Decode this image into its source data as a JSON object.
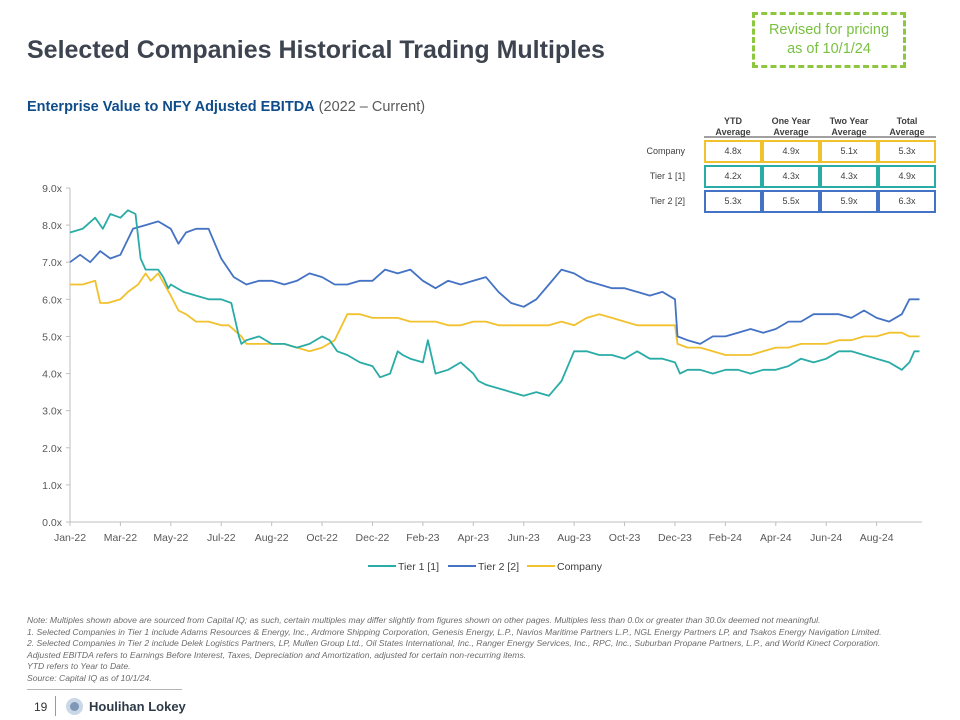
{
  "header": {
    "title": "Selected Companies Historical Trading Multiples",
    "revised_line1": "Revised for pricing",
    "revised_line2": "as of 10/1/24"
  },
  "subtitle": {
    "bold": "Enterprise Value to NFY Adjusted EBITDA",
    "range": "(2022 – Current)"
  },
  "summary_table": {
    "columns": [
      [
        "YTD",
        "Average"
      ],
      [
        "One Year",
        "Average"
      ],
      [
        "Two Year",
        "Average"
      ],
      [
        "Total",
        "Average"
      ]
    ],
    "rows": [
      {
        "label": "Company",
        "values": [
          "4.8x",
          "4.9x",
          "5.1x",
          "5.3x"
        ],
        "border": "#f2c12e"
      },
      {
        "label": "Tier 1 [1]",
        "values": [
          "4.2x",
          "4.3x",
          "4.3x",
          "4.9x"
        ],
        "border": "#2aaca6"
      },
      {
        "label": "Tier 2 [2]",
        "values": [
          "5.3x",
          "5.5x",
          "5.9x",
          "6.3x"
        ],
        "border": "#4472c4"
      }
    ]
  },
  "chart_data": {
    "type": "line",
    "title": "Enterprise Value to NFY Adjusted EBITDA (2022 – Current)",
    "x_unit": "months since Jan-22",
    "x_ticks": [
      "Jan-22",
      "Mar-22",
      "May-22",
      "Jul-22",
      "Aug-22",
      "Oct-22",
      "Dec-22",
      "Feb-23",
      "Apr-23",
      "Jun-23",
      "Aug-23",
      "Oct-23",
      "Dec-23",
      "Feb-24",
      "Apr-24",
      "Jun-24",
      "Aug-24"
    ],
    "x_tick_values": [
      0,
      2,
      4,
      6,
      8,
      10,
      12,
      14,
      16,
      18,
      20,
      22,
      24,
      26,
      28,
      30,
      32
    ],
    "xlim": [
      0,
      33.8
    ],
    "y_ticks": [
      "0.0x",
      "1.0x",
      "2.0x",
      "3.0x",
      "4.0x",
      "5.0x",
      "6.0x",
      "7.0x",
      "8.0x",
      "9.0x"
    ],
    "ylim": [
      0,
      9
    ],
    "legend_position": "bottom",
    "series": [
      {
        "name": "Tier 1 [1]",
        "color": "#2aaca6",
        "x": [
          0,
          0.5,
          1,
          1.3,
          1.6,
          2,
          2.3,
          2.6,
          2.8,
          3,
          3.5,
          3.7,
          3.9,
          4,
          4.5,
          5,
          5.5,
          6,
          6.4,
          6.7,
          6.8,
          7,
          7.5,
          8,
          8.5,
          9,
          9.5,
          10,
          10.3,
          10.6,
          11,
          11.5,
          12,
          12.3,
          12.7,
          13,
          13.2,
          13.5,
          14,
          14.2,
          14.5,
          15,
          15.5,
          16,
          16.2,
          16.5,
          17,
          17.5,
          18,
          18.5,
          19,
          19.5,
          20,
          20.5,
          21,
          21.5,
          22,
          22.5,
          23,
          23.5,
          24,
          24.2,
          24.5,
          25,
          25.5,
          26,
          26.5,
          27,
          27.5,
          28,
          28.5,
          29,
          29.5,
          30,
          30.5,
          31,
          31.5,
          32,
          32.5,
          33,
          33.3,
          33.5,
          33.7
        ],
        "y": [
          7.8,
          7.9,
          8.2,
          7.9,
          8.3,
          8.2,
          8.4,
          8.3,
          7.1,
          6.8,
          6.8,
          6.6,
          6.3,
          6.4,
          6.2,
          6.1,
          6.0,
          6.0,
          5.9,
          5.0,
          4.8,
          4.9,
          5.0,
          4.8,
          4.8,
          4.7,
          4.8,
          5.0,
          4.9,
          4.6,
          4.5,
          4.3,
          4.2,
          3.9,
          4.0,
          4.6,
          4.5,
          4.4,
          4.3,
          4.9,
          4.0,
          4.1,
          4.3,
          4.0,
          3.8,
          3.7,
          3.6,
          3.5,
          3.4,
          3.5,
          3.4,
          3.8,
          4.6,
          4.6,
          4.5,
          4.5,
          4.4,
          4.6,
          4.4,
          4.4,
          4.3,
          4.0,
          4.1,
          4.1,
          4.0,
          4.1,
          4.1,
          4.0,
          4.1,
          4.1,
          4.2,
          4.4,
          4.3,
          4.4,
          4.6,
          4.6,
          4.5,
          4.4,
          4.3,
          4.1,
          4.3,
          4.6,
          4.6
        ]
      },
      {
        "name": "Tier 2 [2]",
        "color": "#4472c4",
        "x": [
          0,
          0.4,
          0.8,
          1.2,
          1.6,
          2,
          2.5,
          3,
          3.5,
          4,
          4.3,
          4.6,
          5,
          5.5,
          6,
          6.5,
          7,
          7.5,
          8,
          8.5,
          9,
          9.5,
          10,
          10.5,
          11,
          11.5,
          12,
          12.5,
          13,
          13.5,
          14,
          14.5,
          15,
          15.5,
          16,
          16.5,
          17,
          17.5,
          18,
          18.5,
          19,
          19.5,
          20,
          20.5,
          21,
          21.5,
          22,
          22.5,
          23,
          23.5,
          24,
          24.1,
          24.5,
          25,
          25.5,
          26,
          26.5,
          27,
          27.5,
          28,
          28.5,
          29,
          29.5,
          30,
          30.5,
          31,
          31.5,
          32,
          32.5,
          33,
          33.3,
          33.7
        ],
        "y": [
          7.0,
          7.2,
          7.0,
          7.3,
          7.1,
          7.2,
          7.9,
          8.0,
          8.1,
          7.9,
          7.5,
          7.8,
          7.9,
          7.9,
          7.1,
          6.6,
          6.4,
          6.5,
          6.5,
          6.4,
          6.5,
          6.7,
          6.6,
          6.4,
          6.4,
          6.5,
          6.5,
          6.8,
          6.7,
          6.8,
          6.5,
          6.3,
          6.5,
          6.4,
          6.5,
          6.6,
          6.2,
          5.9,
          5.8,
          6.0,
          6.4,
          6.8,
          6.7,
          6.5,
          6.4,
          6.3,
          6.3,
          6.2,
          6.1,
          6.2,
          6.0,
          5.0,
          4.9,
          4.8,
          5.0,
          5.0,
          5.1,
          5.2,
          5.1,
          5.2,
          5.4,
          5.4,
          5.6,
          5.6,
          5.6,
          5.5,
          5.7,
          5.5,
          5.4,
          5.6,
          6.0,
          6.0
        ]
      },
      {
        "name": "Company",
        "color": "#f2c12e",
        "x": [
          0,
          0.5,
          1,
          1.2,
          1.5,
          2,
          2.3,
          2.7,
          3,
          3.2,
          3.5,
          4,
          4.3,
          4.6,
          5,
          5.5,
          6,
          6.3,
          6.8,
          7,
          7.5,
          8,
          8.5,
          9,
          9.5,
          10,
          10.5,
          11,
          11.5,
          12,
          12.5,
          13,
          13.5,
          14,
          14.5,
          15,
          15.5,
          16,
          16.5,
          17,
          17.5,
          18,
          18.5,
          19,
          19.5,
          20,
          20.5,
          21,
          21.5,
          22,
          22.5,
          23,
          23.5,
          24,
          24.1,
          24.5,
          25,
          25.5,
          26,
          26.5,
          27,
          27.5,
          28,
          28.5,
          29,
          29.5,
          30,
          30.5,
          31,
          31.5,
          32,
          32.5,
          33,
          33.3,
          33.7
        ],
        "y": [
          6.4,
          6.4,
          6.5,
          5.9,
          5.9,
          6.0,
          6.2,
          6.4,
          6.7,
          6.5,
          6.7,
          6.1,
          5.7,
          5.6,
          5.4,
          5.4,
          5.3,
          5.3,
          5.0,
          4.8,
          4.8,
          4.8,
          4.8,
          4.7,
          4.6,
          4.7,
          4.9,
          5.6,
          5.6,
          5.5,
          5.5,
          5.5,
          5.4,
          5.4,
          5.4,
          5.3,
          5.3,
          5.4,
          5.4,
          5.3,
          5.3,
          5.3,
          5.3,
          5.3,
          5.4,
          5.3,
          5.5,
          5.6,
          5.5,
          5.4,
          5.3,
          5.3,
          5.3,
          5.3,
          4.8,
          4.7,
          4.7,
          4.6,
          4.5,
          4.5,
          4.5,
          4.6,
          4.7,
          4.7,
          4.8,
          4.8,
          4.8,
          4.9,
          4.9,
          5.0,
          5.0,
          5.1,
          5.1,
          5.0,
          5.0
        ]
      }
    ]
  },
  "notes": {
    "line0": "Note: Multiples shown above are sourced from Capital IQ; as such, certain multiples may differ slightly from figures shown on other pages. Multiples less than 0.0x or greater than 30.0x deemed not meaningful.",
    "line1": "1.   Selected Companies in Tier 1 include Adams Resources & Energy, Inc., Ardmore Shipping Corporation, Genesis Energy, L.P., Navios Maritime Partners L.P., NGL Energy Partners LP, and Tsakos Energy Navigation Limited.",
    "line2": "2.   Selected Companies in Tier 2 include Delek Logistics Partners, LP, Mullen Group Ltd., Oil States International, Inc., Ranger Energy Services, Inc., RPC, Inc., Suburban Propane Partners, L.P., and World Kinect Corporation.",
    "line3": "Adjusted EBITDA refers to Earnings Before Interest, Taxes, Depreciation and Amortization, adjusted for certain non-recurring items.",
    "line4": "YTD refers to Year to Date.",
    "line5": "Source: Capital IQ as of 10/1/24."
  },
  "footer": {
    "page": "19",
    "brand": "Houlihan Lokey"
  }
}
